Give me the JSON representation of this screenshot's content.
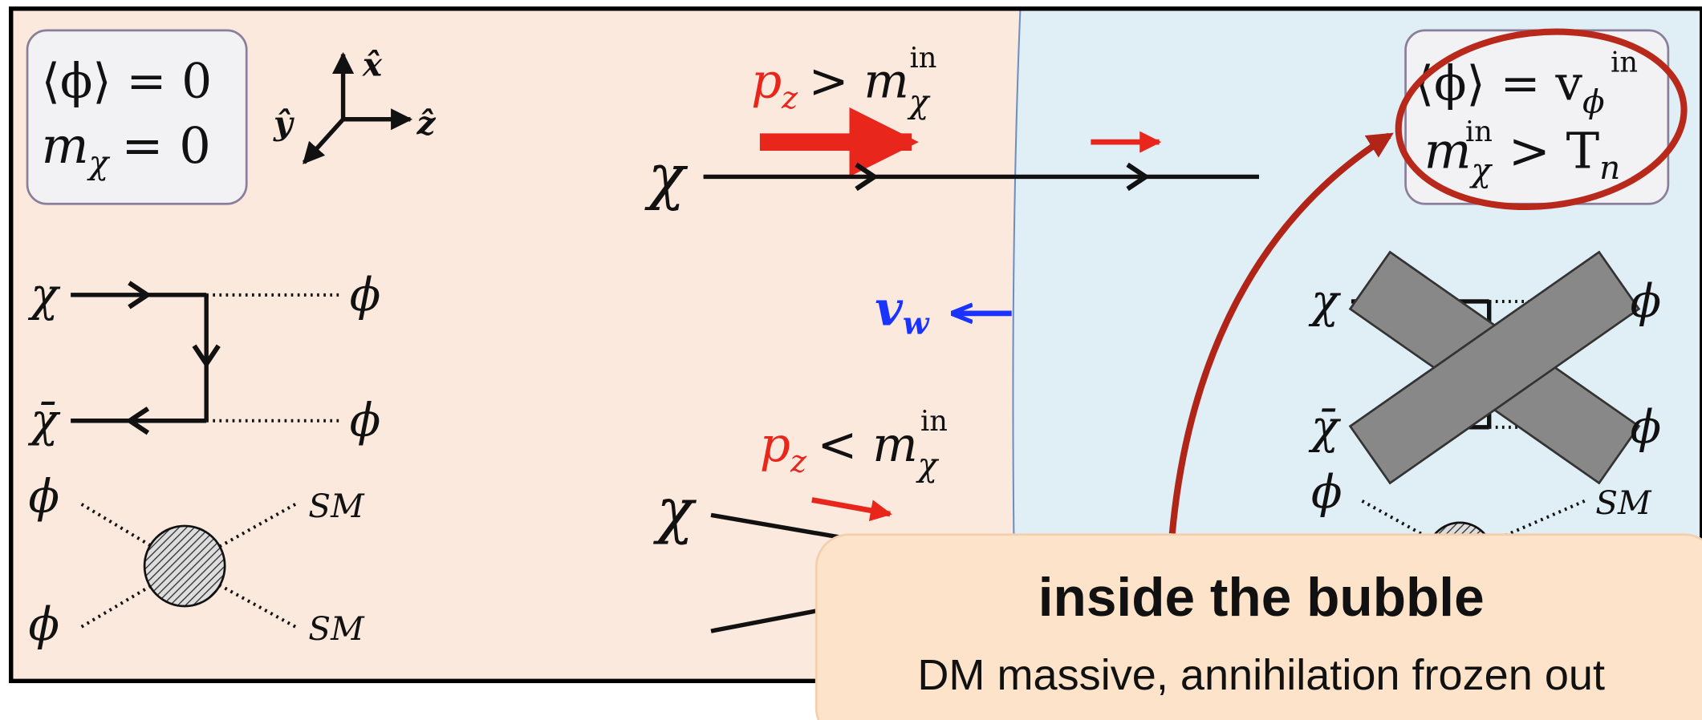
{
  "left_box": {
    "vev": "⟨ϕ⟩ = 0",
    "mass": {
      "symbol": "m",
      "sub": "χ",
      "rest": "= 0"
    }
  },
  "axes": {
    "x": "x̂",
    "y": "ŷ",
    "z": "ẑ"
  },
  "upper_particle": {
    "label": "χ",
    "momentum": {
      "p": "p",
      "p_sub": "z",
      "relation": "> m",
      "m_sub": "χ",
      "m_sup": "in"
    }
  },
  "wall_velocity": {
    "v": "v",
    "sub": "w"
  },
  "lower_particle": {
    "label": "χ",
    "momentum": {
      "p": "p",
      "p_sub": "z",
      "relation": "< m",
      "m_sub": "χ",
      "m_sup": "in"
    }
  },
  "left_diagram": {
    "in_particle": "χ",
    "in_antiparticle": "χ̄",
    "out1": "ϕ",
    "out2": "ϕ"
  },
  "left_annihilation": {
    "in1": "ϕ",
    "in2": "ϕ",
    "out1": "SM",
    "out2": "SM"
  },
  "right_box": {
    "vev": {
      "base": "⟨ϕ⟩ = v",
      "sub": "ϕ",
      "sup": "in"
    },
    "mass": {
      "symbol": "m",
      "sub": "χ",
      "sup": "in",
      "relation": "> T",
      "rel_sub": "n"
    }
  },
  "right_diagram": {
    "in_particle": "χ",
    "in_antiparticle": "χ̄",
    "out1": "ϕ",
    "out2": "ϕ"
  },
  "right_annihilation": {
    "in1": "ϕ",
    "out1": "SM"
  },
  "callout": {
    "title": "inside the bubble",
    "subtitle": "DM massive, annihilation frozen out"
  }
}
